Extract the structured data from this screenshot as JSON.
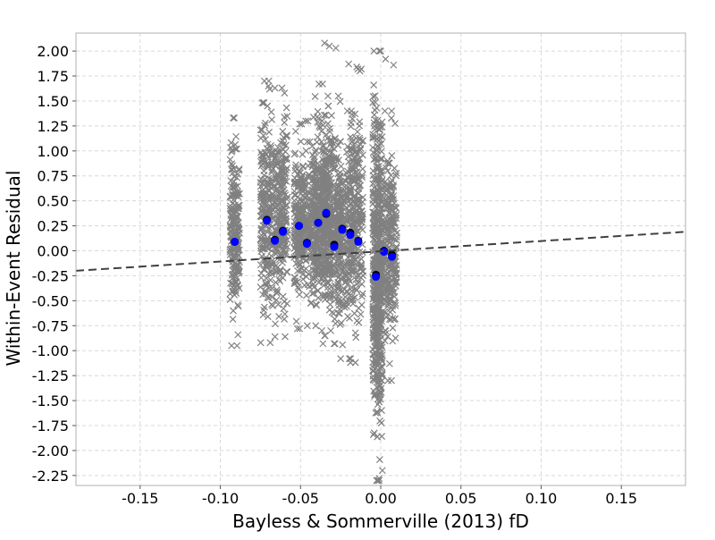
{
  "chart_data": {
    "type": "scatter",
    "title": "",
    "xlabel": "Bayless & Sommerville (2013) fD",
    "ylabel": "Within-Event Residual",
    "xlim": [
      -0.19,
      0.19
    ],
    "ylim": [
      -2.35,
      2.18
    ],
    "xticks": [
      -0.15,
      -0.1,
      -0.05,
      0.0,
      0.05,
      0.1,
      0.15
    ],
    "xtick_labels": [
      "-0.15",
      "-0.10",
      "-0.05",
      "0.00",
      "0.05",
      "0.10",
      "0.15"
    ],
    "yticks": [
      2.0,
      1.75,
      1.5,
      1.25,
      1.0,
      0.75,
      0.5,
      0.25,
      0.0,
      -0.25,
      -0.5,
      -0.75,
      -1.0,
      -1.25,
      -1.5,
      -1.75,
      -2.0,
      -2.25
    ],
    "ytick_labels": [
      "2.00",
      "1.75",
      "1.50",
      "1.25",
      "1.00",
      "0.75",
      "0.50",
      "0.25",
      "0.00",
      "-0.25",
      "-0.50",
      "-0.75",
      "-1.00",
      "-1.25",
      "-1.50",
      "-1.75",
      "-2.00",
      "-2.25"
    ],
    "grid": true,
    "series": [
      {
        "marker": "x",
        "color": "#808080",
        "clusters": [
          {
            "x": -0.091,
            "width": 0.003,
            "ymin": -0.95,
            "ymax": 1.33,
            "count": 220
          },
          {
            "x": -0.071,
            "width": 0.004,
            "ymin": -0.92,
            "ymax": 1.7,
            "count": 240
          },
          {
            "x": -0.062,
            "width": 0.004,
            "ymin": -0.86,
            "ymax": 1.63,
            "count": 240
          },
          {
            "x": -0.051,
            "width": 0.003,
            "ymin": -0.78,
            "ymax": 1.27,
            "count": 200
          },
          {
            "x": -0.044,
            "width": 0.005,
            "ymin": -0.75,
            "ymax": 1.3,
            "count": 240
          },
          {
            "x": -0.038,
            "width": 0.004,
            "ymin": -0.85,
            "ymax": 1.67,
            "count": 240
          },
          {
            "x": -0.034,
            "width": 0.003,
            "ymin": -0.8,
            "ymax": 1.45,
            "count": 200
          },
          {
            "x": -0.029,
            "width": 0.004,
            "ymin": -0.93,
            "ymax": 1.55,
            "count": 240
          },
          {
            "x": -0.022,
            "width": 0.005,
            "ymin": -1.08,
            "ymax": 1.4,
            "count": 240
          },
          {
            "x": -0.015,
            "width": 0.004,
            "ymin": -1.12,
            "ymax": 1.82,
            "count": 240
          },
          {
            "x": -0.002,
            "width": 0.003,
            "ymin": -2.3,
            "ymax": 2.0,
            "count": 600
          },
          {
            "x": 0.006,
            "width": 0.004,
            "ymin": -1.3,
            "ymax": 1.4,
            "count": 260
          }
        ],
        "extra_points": [
          {
            "x": -0.035,
            "y": 2.08
          },
          {
            "x": -0.032,
            "y": 2.05
          },
          {
            "x": -0.028,
            "y": 2.03
          },
          {
            "x": -0.02,
            "y": 1.87
          },
          {
            "x": -0.015,
            "y": 1.84
          },
          {
            "x": -0.013,
            "y": 1.8
          },
          {
            "x": 0.0,
            "y": 2.0
          },
          {
            "x": 0.003,
            "y": 1.92
          },
          {
            "x": 0.008,
            "y": 1.86
          },
          {
            "x": -0.001,
            "y": -2.28
          },
          {
            "x": 0.001,
            "y": -2.2
          },
          {
            "x": -0.07,
            "y": 1.65
          },
          {
            "x": -0.06,
            "y": 1.58
          },
          {
            "x": -0.036,
            "y": -0.93
          },
          {
            "x": -0.025,
            "y": -1.08
          }
        ]
      },
      {
        "marker": "o",
        "color": "#000000",
        "x": [
          -0.091,
          -0.071,
          -0.066,
          -0.061,
          -0.051,
          -0.046,
          -0.039,
          -0.034,
          -0.029,
          -0.024,
          -0.019,
          -0.014,
          -0.003,
          0.002,
          0.007
        ],
        "y": [
          0.09,
          0.31,
          0.11,
          0.2,
          0.25,
          0.08,
          0.28,
          0.37,
          0.06,
          0.22,
          0.18,
          0.1,
          -0.24,
          0.0,
          -0.04
        ]
      },
      {
        "marker": "o",
        "color": "#0000ff",
        "x": [
          -0.091,
          -0.071,
          -0.066,
          -0.061,
          -0.051,
          -0.046,
          -0.039,
          -0.034,
          -0.029,
          -0.024,
          -0.019,
          -0.014,
          -0.003,
          0.002,
          0.007
        ],
        "y": [
          0.09,
          0.3,
          0.1,
          0.19,
          0.25,
          0.07,
          0.28,
          0.38,
          0.04,
          0.21,
          0.16,
          0.09,
          -0.26,
          -0.01,
          -0.06
        ]
      }
    ],
    "trendline": {
      "style": "dashed",
      "color": "#404040",
      "x": [
        -0.19,
        0.19
      ],
      "y": [
        -0.2,
        0.19
      ]
    }
  }
}
